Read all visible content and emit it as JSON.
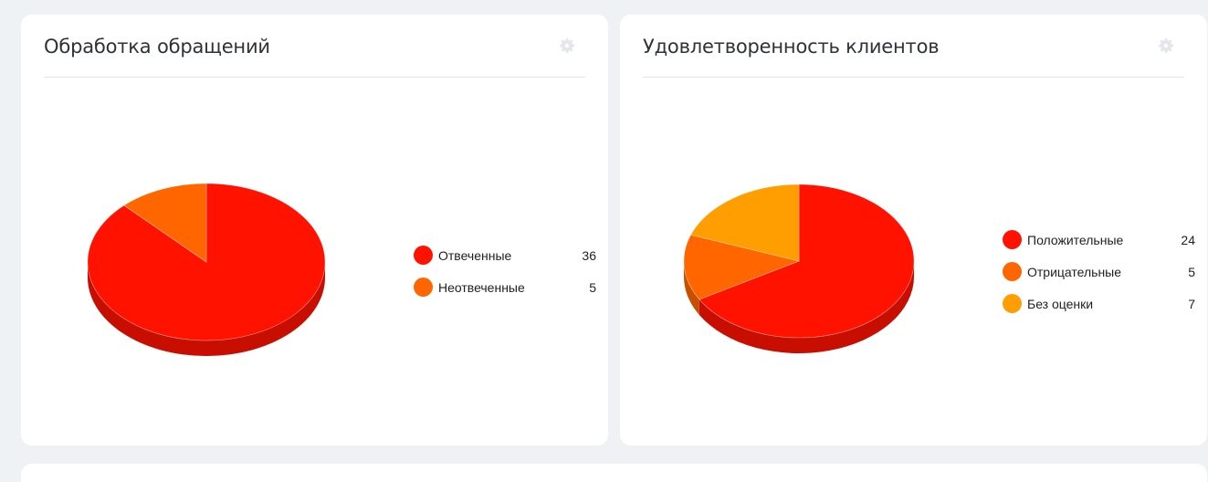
{
  "cards": [
    {
      "title": "Обработка обращений",
      "chart_data": {
        "type": "pie",
        "categories": [
          "Отвеченные",
          "Неотвеченные"
        ],
        "values": [
          36,
          5
        ],
        "colors": [
          "#ff1200",
          "#ff6600"
        ]
      }
    },
    {
      "title": "Удовлетворенность клиентов",
      "chart_data": {
        "type": "pie",
        "categories": [
          "Положительные",
          "Отрицательные",
          "Без оценки"
        ],
        "values": [
          24,
          5,
          7
        ],
        "colors": [
          "#ff1200",
          "#ff6600",
          "#ff9e00"
        ]
      }
    }
  ],
  "icons": {
    "settings": "gear-icon"
  }
}
